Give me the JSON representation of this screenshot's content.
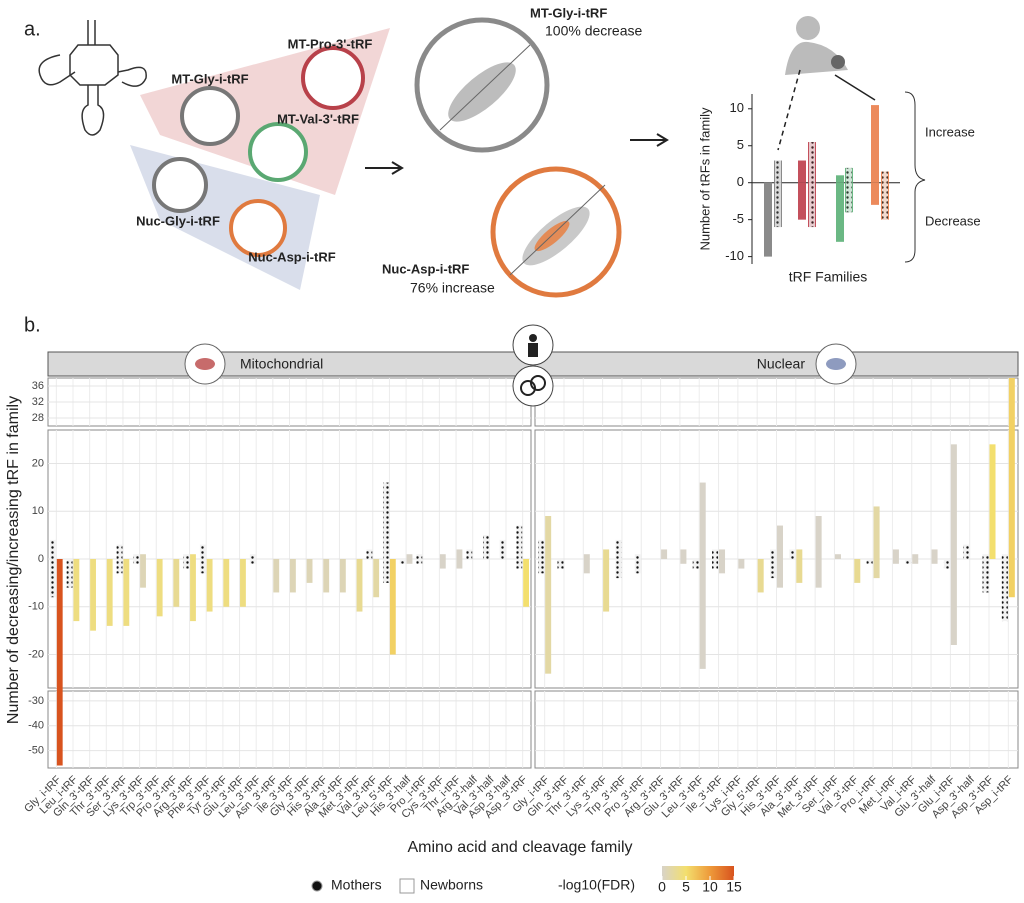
{
  "labels": {
    "a": "a.",
    "b": "b."
  },
  "schematic": {
    "mt_pro": "MT-Pro-3'-tRF",
    "mt_gly": "MT-Gly-i-tRF",
    "mt_val": "MT-Val-3'-tRF",
    "nuc_gly": "Nuc-Gly-i-tRF",
    "nuc_asp": "Nuc-Asp-i-tRF"
  },
  "scatter_top": {
    "title": "MT-Gly-i-tRF",
    "subtitle": "100% decrease"
  },
  "scatter_bottom": {
    "title": "Nuc-Asp-i-tRF",
    "subtitle": "76% increase"
  },
  "chart_data": [
    {
      "type": "bar",
      "ylabel": "Number of tRFs in family",
      "xlabel": "tRF Families",
      "ylim": [
        -11,
        12
      ],
      "yticks": [
        10,
        5,
        0,
        -5,
        -10
      ],
      "categories": [
        null,
        null,
        null,
        null,
        null,
        null,
        null,
        null
      ],
      "increase": [
        0,
        3,
        3,
        5.5,
        1,
        2,
        10.5,
        1.5
      ],
      "decrease": [
        -10,
        -6,
        -5,
        -6,
        -8,
        -4,
        -3,
        -5
      ],
      "colors": [
        "#8a8a8a",
        "#8a8a8a",
        "#c4505c",
        "#c4505c",
        "#6bb884",
        "#6bb884",
        "#ec8a5c",
        "#ec8a5c"
      ],
      "dotted": [
        false,
        true,
        false,
        true,
        false,
        true,
        false,
        true
      ],
      "annotations": [
        "Increase",
        "Decrease"
      ]
    },
    {
      "type": "bar",
      "ylabel": "Number of decreasing/increasing tRF in family",
      "xlabel": "Amino acid and cleavage family",
      "ylim": [
        -27,
        27
      ],
      "yticks": [
        -20,
        -10,
        0,
        10,
        20
      ],
      "ylim_top": [
        26,
        38
      ],
      "yticks_top": [
        28,
        32,
        36
      ],
      "ylim_bottom": [
        -57,
        -26
      ],
      "yticks_bottom": [
        -50,
        -40,
        -30
      ],
      "grid": true,
      "panels": [
        {
          "title": "Mitochondrial",
          "categories": [
            "Gly_i-tRF",
            "Leu_i-tRF",
            "Gln_3'-tRF",
            "Thr_3'-tRF",
            "Ser_3'-tRF",
            "Lys_3'-tRF",
            "Trp_3'-tRF",
            "Pro_3'-tRF",
            "Arg_3'-tRF",
            "Phe_3'-tRF",
            "Tyr_3'-tRF",
            "Glu_3'-tRF",
            "Leu_3'-tRF",
            "Asn_3'-tRF",
            "Ile_3'-tRF",
            "Gly_3'-tRF",
            "His_3'-tRF",
            "Ala_3'-tRF",
            "Met_3'-tRF",
            "Val_3'-tRF",
            "Leu_5'-tRF",
            "His_3'-half",
            "Pro_i-tRF",
            "Cys_3'-tRF",
            "Thr_i-tRF",
            "Arg_3'-half",
            "Val_3'-half",
            "Asp_3'-half",
            "Asp_3'-tRF"
          ],
          "mothers_up": [
            4,
            0,
            0,
            0,
            3,
            1,
            0,
            0,
            1,
            3,
            0,
            0,
            1,
            0,
            0,
            0,
            0,
            0,
            0,
            2,
            16,
            0,
            1,
            0,
            0,
            2,
            5,
            4,
            7
          ],
          "mothers_down": [
            -8,
            -6,
            0,
            0,
            -3,
            -1,
            0,
            0,
            -2,
            -3,
            0,
            0,
            -1,
            0,
            0,
            0,
            0,
            0,
            0,
            0,
            -5,
            -1,
            -1,
            0,
            0,
            0,
            0,
            0,
            -2
          ],
          "newborns_up": [
            0,
            0,
            0,
            0,
            0,
            1,
            0,
            0,
            1,
            0,
            0,
            0,
            0,
            0,
            0,
            0,
            0,
            0,
            0,
            0,
            0,
            1,
            0,
            1,
            2,
            0,
            0,
            0,
            0
          ],
          "newborns_down": [
            -56,
            -13,
            -15,
            -14,
            -14,
            -6,
            -12,
            -10,
            -13,
            -11,
            -10,
            -10,
            0,
            -7,
            -7,
            -5,
            -7,
            -7,
            -11,
            -8,
            -20,
            -1,
            0,
            -2,
            -2,
            0,
            0,
            0,
            -10
          ],
          "newborns_fdr": [
            15,
            4,
            4,
            4,
            4,
            1,
            4,
            3,
            4,
            4,
            4,
            4,
            0,
            1,
            1,
            1,
            1,
            1,
            3,
            2,
            6,
            0,
            0,
            0,
            0,
            0,
            0,
            0,
            5
          ]
        },
        {
          "title": "Nuclear",
          "categories": [
            "Gly_i-tRF",
            "Gln_3'-tRF",
            "Thr_3'-tRF",
            "Lys_3'-tRF",
            "Trp_3'-tRF",
            "Pro_3'-tRF",
            "Arg_3'-tRF",
            "Glu_3'-tRF",
            "Leu_3'-tRF",
            "Ile_3'-tRF",
            "Lys_i-tRF",
            "Gly_5'-tRF",
            "His_3'-tRF",
            "Ala_3'-tRF",
            "Met_3'-tRF",
            "Ser_i-tRF",
            "Val_3'-tRF",
            "Pro_i-tRF",
            "Met_i-tRF",
            "Val_i-tRF",
            "Glu_3'-half",
            "Glu_i-tRF",
            "Asp_3'-half",
            "Asp_3'-tRF",
            "Asp_i-tRF"
          ],
          "mothers_up": [
            4,
            0,
            0,
            0,
            4,
            1,
            0,
            0,
            0,
            2,
            0,
            0,
            2,
            2,
            0,
            0,
            0,
            0,
            0,
            0,
            0,
            0,
            3,
            1,
            1
          ],
          "mothers_down": [
            -3,
            -2,
            0,
            0,
            -4,
            -3,
            0,
            0,
            -2,
            -2,
            0,
            0,
            -4,
            0,
            0,
            0,
            0,
            -1,
            0,
            -1,
            0,
            -2,
            0,
            -7,
            -13
          ],
          "newborns_up": [
            9,
            0,
            1,
            2,
            0,
            0,
            2,
            2,
            16,
            2,
            0,
            0,
            7,
            2,
            9,
            1,
            0,
            11,
            2,
            1,
            2,
            24,
            0,
            24,
            38
          ],
          "newborns_down": [
            -24,
            0,
            -3,
            -11,
            0,
            0,
            0,
            -1,
            -23,
            -3,
            -2,
            -7,
            -6,
            -5,
            -6,
            0,
            -5,
            -4,
            -1,
            -1,
            -1,
            -18,
            0,
            0,
            -8
          ],
          "newborns_fdr": [
            2,
            0,
            0,
            3,
            0,
            0,
            0,
            0,
            0,
            0,
            0,
            3,
            0,
            3,
            0,
            0,
            3,
            2,
            0,
            0,
            0,
            0,
            0,
            5,
            6
          ]
        }
      ],
      "legend": [
        "Mothers",
        "Newborns"
      ],
      "mothers_color": "#efefef",
      "colorbar": {
        "title": "-log10(FDR)",
        "lim": [
          0,
          15
        ],
        "ticks": [
          0,
          5,
          10,
          15
        ],
        "colors": [
          "#d8d3c8",
          "#f3df6e",
          "#ee9a3a",
          "#d8531e"
        ]
      }
    }
  ]
}
